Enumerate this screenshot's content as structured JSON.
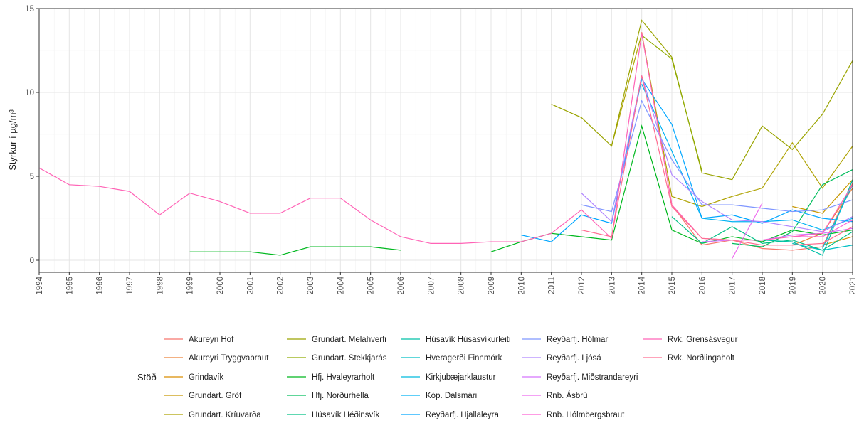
{
  "chart_data": {
    "type": "line",
    "ylabel": "Styrkur í µg/m³",
    "legend_title": "Stöð",
    "x": [
      1994,
      1995,
      1996,
      1997,
      1998,
      1999,
      2000,
      2001,
      2002,
      2003,
      2004,
      2005,
      2006,
      2007,
      2008,
      2009,
      2010,
      2011,
      2012,
      2013,
      2014,
      2015,
      2016,
      2017,
      2018,
      2019,
      2020,
      2021
    ],
    "xlim": [
      1994,
      2021
    ],
    "xticks": [
      1994,
      1995,
      1996,
      1997,
      1998,
      1999,
      2000,
      2001,
      2002,
      2003,
      2004,
      2005,
      2006,
      2007,
      2008,
      2009,
      2010,
      2011,
      2012,
      2013,
      2014,
      2015,
      2016,
      2017,
      2018,
      2019,
      2020,
      2021
    ],
    "ylim": [
      -0.72,
      15
    ],
    "yticks": [
      0,
      5,
      10,
      15
    ],
    "grid": true,
    "series": [
      {
        "name": "Akureyri Hof",
        "color": "#F8766D",
        "values": [
          null,
          null,
          null,
          null,
          null,
          null,
          null,
          null,
          null,
          null,
          null,
          null,
          null,
          null,
          null,
          null,
          null,
          null,
          null,
          null,
          13.6,
          3.3,
          0.9,
          1.2,
          0.7,
          0.6,
          0.8,
          4.6
        ]
      },
      {
        "name": "Akureyri Tryggvabraut",
        "color": "#EC8239",
        "values": [
          null,
          null,
          null,
          null,
          null,
          null,
          null,
          null,
          null,
          null,
          null,
          null,
          null,
          null,
          null,
          null,
          null,
          null,
          null,
          null,
          null,
          null,
          null,
          null,
          null,
          0.9,
          1.6,
          4.3
        ]
      },
      {
        "name": "Grindavík",
        "color": "#DB8E00",
        "values": [
          null,
          null,
          null,
          null,
          null,
          null,
          null,
          null,
          null,
          null,
          null,
          null,
          null,
          null,
          null,
          null,
          null,
          null,
          null,
          null,
          null,
          null,
          null,
          null,
          null,
          null,
          0.9,
          1.4
        ]
      },
      {
        "name": "Grundart. Gröf",
        "color": "#C79800",
        "values": [
          null,
          null,
          null,
          null,
          null,
          null,
          null,
          null,
          null,
          null,
          null,
          null,
          null,
          null,
          null,
          null,
          null,
          null,
          null,
          null,
          null,
          null,
          null,
          null,
          null,
          3.2,
          2.8,
          4.8
        ]
      },
      {
        "name": "Grundart. Kríuvarða",
        "color": "#AEA200",
        "values": [
          null,
          null,
          null,
          null,
          null,
          null,
          null,
          null,
          null,
          null,
          null,
          null,
          null,
          null,
          null,
          null,
          null,
          null,
          null,
          6.8,
          13.5,
          3.8,
          3.2,
          3.8,
          4.3,
          7.0,
          4.3,
          6.8
        ]
      },
      {
        "name": "Grundart. Melahverfi",
        "color": "#9AA400",
        "values": [
          null,
          null,
          null,
          null,
          null,
          null,
          null,
          null,
          null,
          null,
          null,
          null,
          null,
          null,
          null,
          null,
          null,
          9.3,
          8.5,
          6.8,
          14.3,
          12.1,
          5.2,
          4.8,
          8.0,
          6.6,
          8.7,
          11.9
        ]
      },
      {
        "name": "Grundart. Stekkjarás",
        "color": "#8FAA00",
        "values": [
          null,
          null,
          null,
          null,
          null,
          null,
          null,
          null,
          null,
          null,
          null,
          null,
          null,
          null,
          null,
          null,
          null,
          null,
          null,
          null,
          13.4,
          12.0,
          5.3,
          null,
          null,
          null,
          null,
          null
        ]
      },
      {
        "name": "Hfj. Hvaleyrarholt",
        "color": "#00B81F",
        "values": [
          null,
          null,
          null,
          null,
          null,
          0.5,
          0.5,
          0.5,
          0.3,
          0.8,
          0.8,
          0.8,
          0.6,
          null,
          null,
          0.5,
          1.1,
          1.6,
          1.4,
          1.2,
          8.0,
          1.8,
          1.0,
          1.4,
          1.1,
          1.8,
          1.5,
          1.8
        ]
      },
      {
        "name": "Hfj. Norðurhella",
        "color": "#00BD5C",
        "values": [
          null,
          null,
          null,
          null,
          null,
          null,
          null,
          null,
          null,
          null,
          null,
          null,
          null,
          null,
          null,
          null,
          null,
          null,
          null,
          null,
          null,
          null,
          null,
          1.0,
          0.8,
          1.7,
          4.5,
          5.4
        ]
      },
      {
        "name": "Húsavík Héðinsvík",
        "color": "#00C085",
        "values": [
          null,
          null,
          null,
          null,
          null,
          null,
          null,
          null,
          null,
          null,
          null,
          null,
          null,
          null,
          null,
          null,
          null,
          null,
          null,
          null,
          null,
          2.6,
          1.0,
          2.0,
          1.0,
          1.2,
          0.6,
          1.7
        ]
      },
      {
        "name": "Húsavík Húsasvíkurleiti",
        "color": "#00C1A7",
        "values": [
          null,
          null,
          null,
          null,
          null,
          null,
          null,
          null,
          null,
          null,
          null,
          null,
          null,
          null,
          null,
          null,
          null,
          null,
          null,
          null,
          null,
          null,
          null,
          null,
          1.2,
          1.1,
          0.3,
          4.8
        ]
      },
      {
        "name": "Hveragerði Finnmörk",
        "color": "#00BFC4",
        "values": [
          null,
          null,
          null,
          null,
          null,
          null,
          null,
          null,
          null,
          null,
          null,
          null,
          null,
          null,
          null,
          null,
          null,
          null,
          null,
          null,
          null,
          null,
          null,
          null,
          null,
          1.0,
          0.6,
          0.9
        ]
      },
      {
        "name": "Kirkjubæjarklaustur",
        "color": "#00BADE",
        "values": [
          null,
          null,
          null,
          null,
          null,
          null,
          null,
          null,
          null,
          null,
          null,
          null,
          null,
          null,
          null,
          null,
          null,
          null,
          null,
          null,
          null,
          null,
          null,
          null,
          null,
          null,
          0.7,
          4.5
        ]
      },
      {
        "name": "Kóp. Dalsmári",
        "color": "#00B2F3",
        "values": [
          null,
          null,
          null,
          null,
          null,
          null,
          null,
          null,
          null,
          null,
          null,
          null,
          null,
          null,
          null,
          null,
          null,
          null,
          null,
          null,
          10.5,
          6.5,
          2.5,
          2.3,
          2.3,
          2.4,
          1.8,
          2.5
        ]
      },
      {
        "name": "Reyðarfj. Hjallaleyra",
        "color": "#00A6FF",
        "values": [
          null,
          null,
          null,
          null,
          null,
          null,
          null,
          null,
          null,
          null,
          null,
          null,
          null,
          null,
          null,
          null,
          1.5,
          1.1,
          2.7,
          2.2,
          10.8,
          8.1,
          2.5,
          2.7,
          2.2,
          3.0,
          2.5,
          2.3
        ]
      },
      {
        "name": "Reyðarfj. Hólmar",
        "color": "#7F96FF",
        "values": [
          null,
          null,
          null,
          null,
          null,
          null,
          null,
          null,
          null,
          null,
          null,
          null,
          null,
          null,
          null,
          null,
          null,
          null,
          3.3,
          2.9,
          9.5,
          6.0,
          3.3,
          3.3,
          3.1,
          2.9,
          3.0,
          3.6
        ]
      },
      {
        "name": "Reyðarfj. Ljósá",
        "color": "#B186FF",
        "values": [
          null,
          null,
          null,
          null,
          null,
          null,
          null,
          null,
          null,
          null,
          null,
          null,
          null,
          null,
          null,
          null,
          null,
          null,
          4.0,
          2.3,
          11.0,
          5.1,
          3.5,
          2.4,
          2.3,
          2.0,
          1.7,
          2.6
        ]
      },
      {
        "name": "Reyðarfj. Miðstrandareyri",
        "color": "#D575FE",
        "values": [
          null,
          null,
          null,
          null,
          null,
          null,
          null,
          null,
          null,
          null,
          null,
          null,
          null,
          null,
          null,
          null,
          null,
          null,
          null,
          null,
          null,
          null,
          1.1,
          1.2,
          1.2,
          1.5,
          1.6,
          1.9
        ]
      },
      {
        "name": "Rnb. Ásbrú",
        "color": "#EE6AEF",
        "values": [
          null,
          null,
          null,
          null,
          null,
          null,
          null,
          null,
          null,
          null,
          null,
          null,
          null,
          null,
          null,
          null,
          null,
          null,
          null,
          null,
          null,
          null,
          null,
          0.1,
          3.4,
          null,
          null,
          null
        ]
      },
      {
        "name": "Rnb. Hólmbergsbraut",
        "color": "#FD61D3",
        "values": [
          null,
          null,
          null,
          null,
          null,
          null,
          null,
          null,
          null,
          null,
          null,
          null,
          null,
          null,
          null,
          null,
          null,
          null,
          null,
          null,
          null,
          null,
          null,
          null,
          null,
          1.4,
          1.4,
          2.4
        ]
      },
      {
        "name": "Rvk. Grensásvegur",
        "color": "#FF63B6",
        "values": [
          5.5,
          4.5,
          4.4,
          4.1,
          2.7,
          4.0,
          3.5,
          2.8,
          2.8,
          3.7,
          3.7,
          2.4,
          1.4,
          1.0,
          1.0,
          1.1,
          1.1,
          1.6,
          3.0,
          1.3,
          13.5,
          3.3,
          1.3,
          1.2,
          1.2,
          1.4,
          1.6,
          4.5
        ]
      },
      {
        "name": "Rvk. Norðlingaholt",
        "color": "#FF6C91",
        "values": [
          null,
          null,
          null,
          null,
          null,
          null,
          null,
          null,
          null,
          null,
          null,
          null,
          null,
          null,
          null,
          null,
          null,
          null,
          1.8,
          1.4,
          11.0,
          3.2,
          1.3,
          1.2,
          0.9,
          0.9,
          1.0,
          2.0
        ]
      }
    ]
  }
}
